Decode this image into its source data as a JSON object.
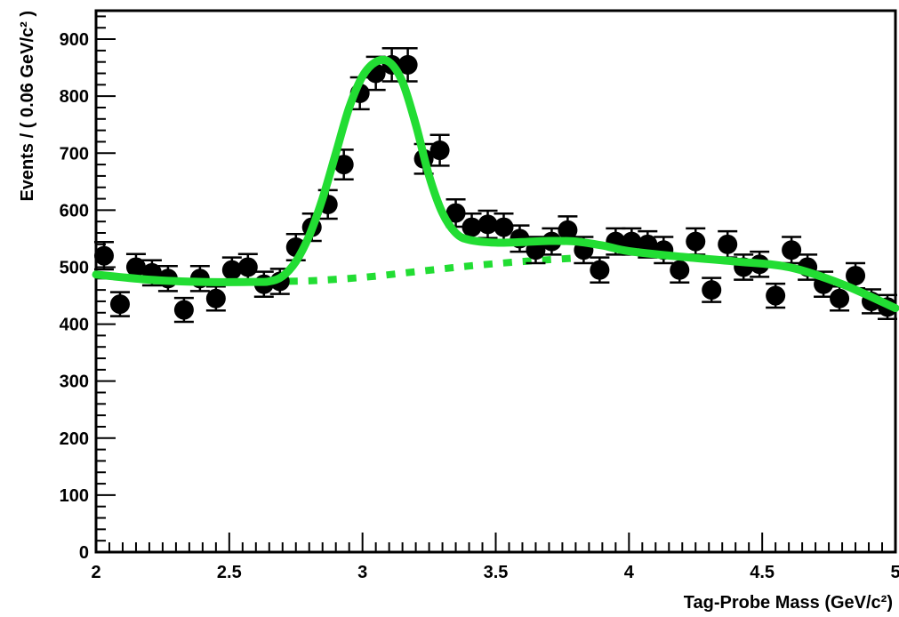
{
  "chart_data": {
    "type": "scatter",
    "xlabel": "Tag-Probe Mass (GeV/c²)",
    "ylabel": "Events / ( 0.06 GeV/c² )",
    "xlim": [
      2,
      5
    ],
    "ylim": [
      0,
      950
    ],
    "x_ticks": [
      "2",
      "2.5",
      "3",
      "3.5",
      "4",
      "4.5",
      "5"
    ],
    "y_ticks": [
      "0",
      "100",
      "200",
      "300",
      "400",
      "500",
      "600",
      "700",
      "800",
      "900"
    ],
    "grid": false,
    "legend": "none",
    "colors": {
      "data": "#000000",
      "fit": "#22dd33",
      "background": "#22dd33"
    },
    "data_points": {
      "x": [
        2.03,
        2.09,
        2.15,
        2.21,
        2.27,
        2.33,
        2.39,
        2.45,
        2.51,
        2.57,
        2.63,
        2.69,
        2.75,
        2.81,
        2.87,
        2.93,
        2.99,
        3.05,
        3.11,
        3.17,
        3.23,
        3.29,
        3.35,
        3.41,
        3.47,
        3.53,
        3.59,
        3.65,
        3.71,
        3.77,
        3.83,
        3.89,
        3.95,
        4.01,
        4.07,
        4.13,
        4.19,
        4.25,
        4.31,
        4.37,
        4.43,
        4.49,
        4.55,
        4.61,
        4.67,
        4.73,
        4.79,
        4.85,
        4.91,
        4.97
      ],
      "y": [
        520,
        435,
        500,
        490,
        480,
        425,
        480,
        445,
        495,
        500,
        470,
        475,
        535,
        570,
        610,
        680,
        805,
        840,
        855,
        855,
        690,
        705,
        595,
        570,
        575,
        570,
        550,
        530,
        545,
        565,
        530,
        495,
        545,
        545,
        540,
        530,
        495,
        545,
        460,
        540,
        500,
        505,
        450,
        530,
        500,
        470,
        445,
        485,
        440,
        430
      ],
      "error": [
        24,
        21,
        23,
        22,
        22,
        21,
        22,
        21,
        22,
        23,
        22,
        22,
        23,
        24,
        25,
        26,
        28,
        29,
        29,
        29,
        26,
        27,
        24,
        24,
        24,
        24,
        23,
        23,
        23,
        24,
        23,
        22,
        23,
        23,
        23,
        23,
        22,
        23,
        21,
        23,
        22,
        22,
        21,
        23,
        22,
        22,
        21,
        22,
        21,
        21
      ]
    },
    "series": [
      {
        "style": "solid",
        "x": [
          2.0,
          2.2,
          2.4,
          2.6,
          2.65,
          2.7,
          2.75,
          2.8,
          2.85,
          2.9,
          2.95,
          3.0,
          3.05,
          3.1,
          3.15,
          3.2,
          3.25,
          3.3,
          3.35,
          3.4,
          3.5,
          3.6,
          3.7,
          3.8,
          3.9,
          4.0,
          4.2,
          4.4,
          4.6,
          4.8,
          5.0
        ],
        "y": [
          487,
          478,
          474,
          474,
          475,
          484,
          510,
          555,
          620,
          700,
          780,
          835,
          860,
          860,
          825,
          750,
          660,
          595,
          560,
          548,
          543,
          544,
          546,
          545,
          538,
          528,
          518,
          510,
          500,
          470,
          428
        ]
      },
      {
        "style": "dashed",
        "x": [
          2.65,
          2.8,
          3.0,
          3.2,
          3.4,
          3.6,
          3.8
        ],
        "y": [
          475,
          476,
          482,
          492,
          502,
          510,
          516
        ]
      }
    ]
  }
}
